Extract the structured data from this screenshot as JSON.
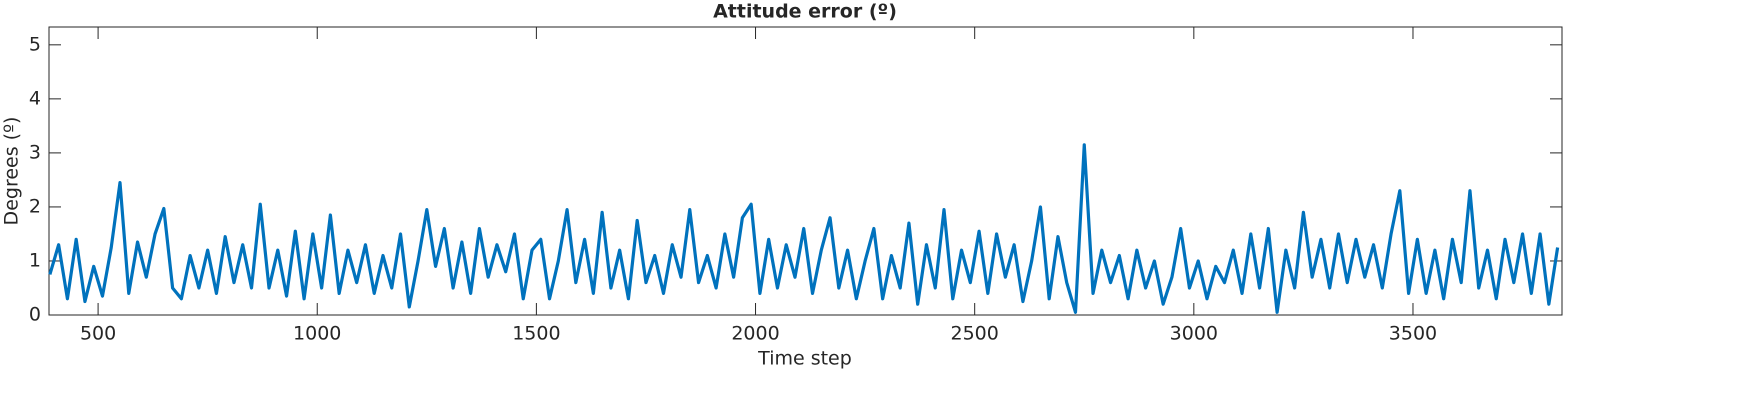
{
  "chart_data": {
    "type": "line",
    "title": "Attitude error (º)",
    "x_label": "Time step",
    "y_label": "Degrees (º)",
    "x": [
      390,
      410,
      430,
      450,
      470,
      490,
      510,
      530,
      550,
      570,
      590,
      610,
      630,
      650,
      670,
      690,
      710,
      730,
      750,
      770,
      790,
      810,
      830,
      850,
      870,
      890,
      910,
      930,
      950,
      970,
      990,
      1010,
      1030,
      1050,
      1070,
      1090,
      1110,
      1130,
      1150,
      1170,
      1190,
      1210,
      1230,
      1250,
      1270,
      1290,
      1310,
      1330,
      1350,
      1370,
      1390,
      1410,
      1430,
      1450,
      1470,
      1490,
      1510,
      1530,
      1550,
      1570,
      1590,
      1610,
      1630,
      1650,
      1670,
      1690,
      1710,
      1730,
      1750,
      1770,
      1790,
      1810,
      1830,
      1850,
      1870,
      1890,
      1910,
      1930,
      1950,
      1970,
      1990,
      2010,
      2030,
      2050,
      2070,
      2090,
      2110,
      2130,
      2150,
      2170,
      2190,
      2210,
      2230,
      2250,
      2270,
      2290,
      2310,
      2330,
      2350,
      2370,
      2390,
      2410,
      2430,
      2450,
      2470,
      2490,
      2510,
      2530,
      2550,
      2570,
      2590,
      2610,
      2630,
      2650,
      2670,
      2690,
      2710,
      2730,
      2750,
      2770,
      2790,
      2810,
      2830,
      2850,
      2870,
      2890,
      2910,
      2930,
      2950,
      2970,
      2990,
      3010,
      3030,
      3050,
      3070,
      3090,
      3110,
      3130,
      3150,
      3170,
      3190,
      3210,
      3230,
      3250,
      3270,
      3290,
      3310,
      3330,
      3350,
      3370,
      3390,
      3410,
      3430,
      3450,
      3470,
      3490,
      3510,
      3530,
      3550,
      3570,
      3590,
      3610,
      3630,
      3650,
      3670,
      3690,
      3710,
      3730,
      3750,
      3770,
      3790,
      3810,
      3830
    ],
    "series": [
      {
        "name": "Attitude error",
        "color": "#0072bd",
        "values": [
          0.75,
          1.3,
          0.3,
          1.4,
          0.25,
          0.9,
          0.35,
          1.25,
          2.45,
          0.4,
          1.35,
          0.7,
          1.5,
          1.97,
          0.5,
          0.3,
          1.1,
          0.5,
          1.2,
          0.4,
          1.45,
          0.6,
          1.3,
          0.5,
          2.05,
          0.5,
          1.2,
          0.35,
          1.55,
          0.3,
          1.5,
          0.5,
          1.85,
          0.4,
          1.2,
          0.6,
          1.3,
          0.4,
          1.1,
          0.5,
          1.5,
          0.15,
          1.0,
          1.95,
          0.9,
          1.6,
          0.5,
          1.35,
          0.4,
          1.6,
          0.7,
          1.3,
          0.8,
          1.5,
          0.3,
          1.2,
          1.4,
          0.3,
          1.0,
          1.95,
          0.6,
          1.4,
          0.4,
          1.9,
          0.5,
          1.2,
          0.3,
          1.75,
          0.6,
          1.1,
          0.4,
          1.3,
          0.7,
          1.95,
          0.6,
          1.1,
          0.5,
          1.5,
          0.7,
          1.8,
          2.05,
          0.4,
          1.4,
          0.5,
          1.3,
          0.7,
          1.6,
          0.4,
          1.2,
          1.8,
          0.5,
          1.2,
          0.3,
          1.0,
          1.6,
          0.3,
          1.1,
          0.5,
          1.7,
          0.2,
          1.3,
          0.5,
          1.95,
          0.3,
          1.2,
          0.6,
          1.55,
          0.4,
          1.5,
          0.7,
          1.3,
          0.25,
          1.0,
          2.0,
          0.3,
          1.45,
          0.6,
          0.05,
          3.15,
          0.4,
          1.2,
          0.6,
          1.1,
          0.3,
          1.2,
          0.5,
          1.0,
          0.2,
          0.7,
          1.6,
          0.5,
          1.0,
          0.3,
          0.9,
          0.6,
          1.2,
          0.4,
          1.5,
          0.5,
          1.6,
          0.05,
          1.2,
          0.5,
          1.9,
          0.7,
          1.4,
          0.5,
          1.5,
          0.6,
          1.4,
          0.7,
          1.3,
          0.5,
          1.5,
          2.3,
          0.4,
          1.4,
          0.4,
          1.2,
          0.3,
          1.4,
          0.6,
          2.3,
          0.5,
          1.2,
          0.3,
          1.4,
          0.6,
          1.5,
          0.4,
          1.5,
          0.2,
          1.25
        ]
      }
    ],
    "xlim": [
      388,
      3840
    ],
    "ylim": [
      0,
      5.33
    ],
    "xticks": [
      500,
      1000,
      1500,
      2000,
      2500,
      3000,
      3500
    ],
    "yticks": [
      0,
      1,
      2,
      3,
      4,
      5
    ]
  }
}
